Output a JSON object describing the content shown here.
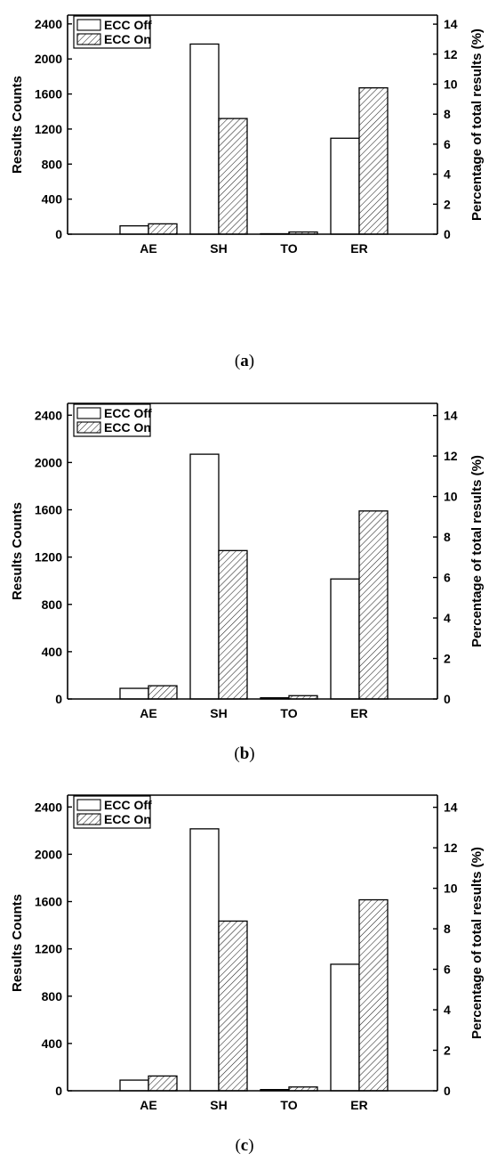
{
  "chart_data": [
    {
      "type": "bar",
      "panel_label": "a",
      "categories": [
        "AE",
        "SH",
        "TO",
        "ER"
      ],
      "series": [
        {
          "name": "ECC Off",
          "values": [
            95,
            2170,
            5,
            1095
          ],
          "fill": "#ffffff"
        },
        {
          "name": "ECC On",
          "values": [
            118,
            1320,
            25,
            1670
          ],
          "fill": "hatch"
        }
      ],
      "ylabel": "Results Counts",
      "y2label": "Percentage of total results (%)",
      "ylim": [
        0,
        2500
      ],
      "yticks": [
        0,
        400,
        800,
        1200,
        1600,
        2000,
        2400
      ],
      "y2lim": [
        0,
        14.6
      ],
      "y2ticks": [
        0,
        2,
        4,
        6,
        8,
        10,
        12,
        14
      ],
      "legend_position": "top-left",
      "grid": false
    },
    {
      "type": "bar",
      "panel_label": "b",
      "categories": [
        "AE",
        "SH",
        "TO",
        "ER"
      ],
      "series": [
        {
          "name": "ECC Off",
          "values": [
            90,
            2070,
            10,
            1015
          ],
          "fill": "#ffffff"
        },
        {
          "name": "ECC On",
          "values": [
            112,
            1255,
            28,
            1590
          ],
          "fill": "hatch"
        }
      ],
      "ylabel": "Results Counts",
      "y2label": "Percentage of total results (%)",
      "ylim": [
        0,
        2500
      ],
      "yticks": [
        0,
        400,
        800,
        1200,
        1600,
        2000,
        2400
      ],
      "y2lim": [
        0,
        14.6
      ],
      "y2ticks": [
        0,
        2,
        4,
        6,
        8,
        10,
        12,
        14
      ],
      "legend_position": "top-left",
      "grid": false
    },
    {
      "type": "bar",
      "panel_label": "c",
      "categories": [
        "AE",
        "SH",
        "TO",
        "ER"
      ],
      "series": [
        {
          "name": "ECC Off",
          "values": [
            90,
            2215,
            10,
            1070
          ],
          "fill": "#ffffff"
        },
        {
          "name": "ECC On",
          "values": [
            125,
            1435,
            32,
            1615
          ],
          "fill": "hatch"
        }
      ],
      "ylabel": "Results Counts",
      "y2label": "Percentage of total results (%)",
      "ylim": [
        0,
        2500
      ],
      "yticks": [
        0,
        400,
        800,
        1200,
        1600,
        2000,
        2400
      ],
      "y2lim": [
        0,
        14.6
      ],
      "y2ticks": [
        0,
        2,
        4,
        6,
        8,
        10,
        12,
        14
      ],
      "legend_position": "top-left",
      "grid": false
    }
  ]
}
